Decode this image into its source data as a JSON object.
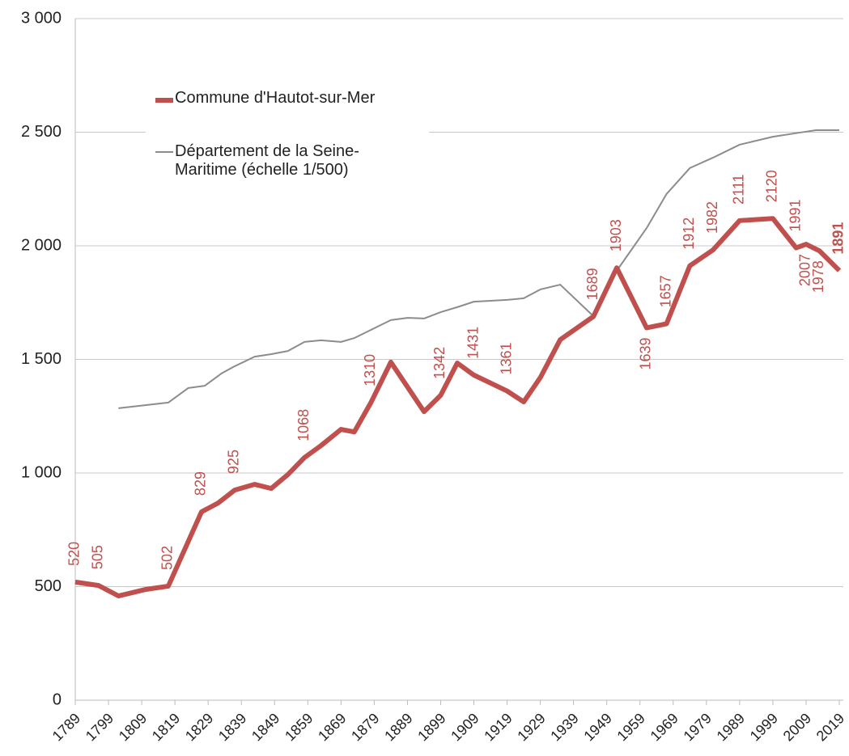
{
  "chart_data": {
    "type": "line",
    "xlim": [
      1789,
      2019
    ],
    "xticks": [
      1789,
      1799,
      1809,
      1819,
      1829,
      1839,
      1849,
      1859,
      1869,
      1879,
      1889,
      1899,
      1909,
      1919,
      1929,
      1939,
      1949,
      1959,
      1969,
      1979,
      1989,
      1999,
      2009,
      2019
    ],
    "ylim": [
      0,
      3000
    ],
    "yticks": [
      0,
      500,
      {
        "value": 1000,
        "label": "1 000"
      },
      {
        "value": 1500,
        "label": "1 500"
      },
      {
        "value": 2000,
        "label": "2 000"
      },
      {
        "value": 2500,
        "label": "2 500"
      },
      {
        "value": 3000,
        "label": "3 000"
      }
    ],
    "grid": true,
    "legend": "top-left",
    "series": [
      {
        "name": "Commune d'Hautot-sur-Mer",
        "color": "#c0504d",
        "x": [
          1789,
          1796,
          1802,
          1810,
          1817,
          1827,
          1832,
          1837,
          1843,
          1848,
          1853,
          1858,
          1863,
          1869,
          1873,
          1878,
          1884,
          1894,
          1899,
          1904,
          1909,
          1919,
          1924,
          1929,
          1935,
          1945,
          1952,
          1961,
          1967,
          1974,
          1981,
          1989,
          1999,
          2006,
          2009,
          2013,
          2019
        ],
        "values": [
          520,
          505,
          459,
          487,
          502,
          829,
          868,
          925,
          950,
          932,
          993,
          1068,
          1121,
          1192,
          1181,
          1310,
          1488,
          1270,
          1342,
          1484,
          1431,
          1361,
          1313,
          1420,
          1587,
          1689,
          1903,
          1639,
          1657,
          1912,
          1982,
          2111,
          2120,
          1991,
          2007,
          1978,
          1891
        ],
        "value_labels": [
          "520",
          "505",
          null,
          null,
          "502",
          "829",
          null,
          "925",
          null,
          null,
          null,
          "1068",
          null,
          null,
          null,
          "1310",
          null,
          null,
          "1342",
          null,
          "1431",
          "1361",
          null,
          null,
          null,
          "1689",
          "1903",
          "1639",
          "1657",
          "1912",
          "1982",
          "2111",
          "2120",
          "1991",
          "2007",
          "1978",
          "1891"
        ]
      },
      {
        "name": "Département de la Seine-Maritime (échelle 1/500)",
        "color": "#8c8c8c",
        "x": [
          1802,
          1817,
          1823,
          1828,
          1833,
          1837,
          1843,
          1848,
          1853,
          1858,
          1863,
          1869,
          1873,
          1878,
          1884,
          1889,
          1894,
          1899,
          1904,
          1909,
          1919,
          1924,
          1929,
          1935,
          1945,
          1952,
          1961,
          1967,
          1974,
          1981,
          1989,
          1999,
          2007,
          2012,
          2019
        ],
        "values": [
          1285,
          1310,
          1374,
          1384,
          1438,
          1470,
          1512,
          1523,
          1537,
          1577,
          1584,
          1577,
          1594,
          1630,
          1673,
          1683,
          1680,
          1708,
          1730,
          1754,
          1762,
          1769,
          1808,
          1829,
          1690,
          1890,
          2078,
          2228,
          2342,
          2388,
          2445,
          2480,
          2498,
          2509,
          2509
        ]
      }
    ]
  }
}
